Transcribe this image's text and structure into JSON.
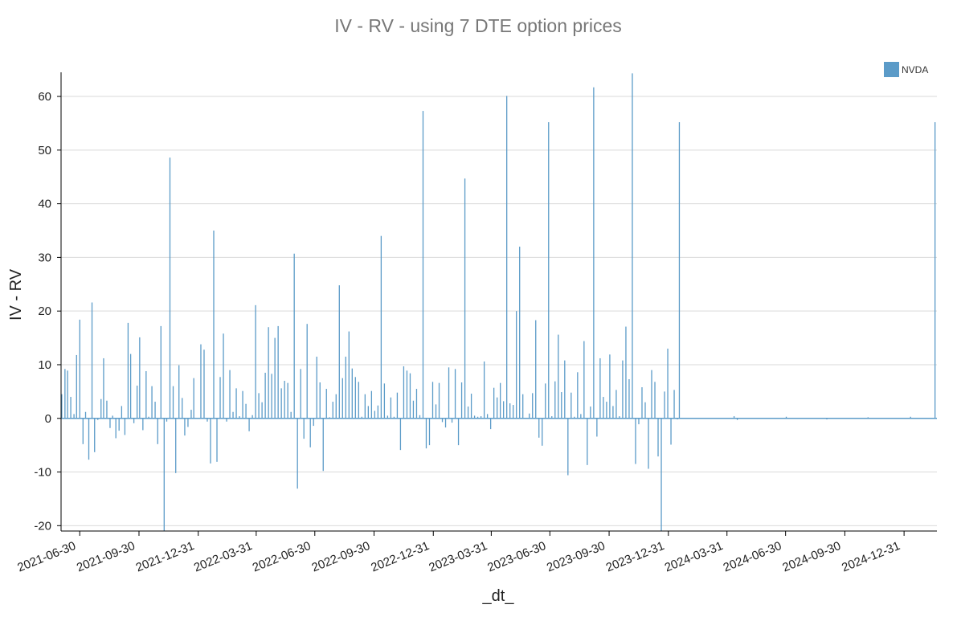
{
  "chart_data": {
    "type": "bar",
    "title": "IV - RV  - using 7 DTE option prices",
    "xlabel": "_dt_",
    "ylabel": "IV - RV",
    "x_tick_labels": [
      "2021-06-30",
      "2021-09-30",
      "2021-12-31",
      "2022-03-31",
      "2022-06-30",
      "2022-09-30",
      "2022-12-31",
      "2023-03-31",
      "2023-06-30",
      "2023-09-30",
      "2023-12-31",
      "2024-03-31",
      "2024-06-30",
      "2024-09-30",
      "2024-12-31"
    ],
    "y_tick_labels": [
      "-20",
      "-10",
      "0",
      "10",
      "20",
      "30",
      "40",
      "50",
      "60"
    ],
    "ylim": [
      -21,
      64.5
    ],
    "xlim": [
      "2021-06-01",
      "2025-02-20"
    ],
    "grid": true,
    "legend_position": "top-right",
    "series": [
      {
        "name": "NVDA",
        "color": "#5b9bc8",
        "points": [
          [
            "2021-06-02",
            4.5
          ],
          [
            "2021-06-07",
            9.2
          ],
          [
            "2021-06-11",
            8.9
          ],
          [
            "2021-06-16",
            4.0
          ],
          [
            "2021-06-21",
            0.8
          ],
          [
            "2021-06-25",
            11.8
          ],
          [
            "2021-06-30",
            18.4
          ],
          [
            "2021-07-05",
            -4.8
          ],
          [
            "2021-07-09",
            1.2
          ],
          [
            "2021-07-14",
            -7.7
          ],
          [
            "2021-07-19",
            21.6
          ],
          [
            "2021-07-23",
            -6.3
          ],
          [
            "2021-07-28",
            -0.3
          ],
          [
            "2021-08-02",
            3.6
          ],
          [
            "2021-08-06",
            11.2
          ],
          [
            "2021-08-11",
            3.3
          ],
          [
            "2021-08-16",
            -1.8
          ],
          [
            "2021-08-20",
            0.5
          ],
          [
            "2021-08-25",
            -3.7
          ],
          [
            "2021-08-30",
            -2.3
          ],
          [
            "2021-09-03",
            2.3
          ],
          [
            "2021-09-08",
            -3.1
          ],
          [
            "2021-09-13",
            17.8
          ],
          [
            "2021-09-17",
            12.0
          ],
          [
            "2021-09-22",
            -0.9
          ],
          [
            "2021-09-27",
            6.1
          ],
          [
            "2021-10-01",
            15.1
          ],
          [
            "2021-10-06",
            -2.2
          ],
          [
            "2021-10-11",
            8.8
          ],
          [
            "2021-10-15",
            0.3
          ],
          [
            "2021-10-20",
            6.0
          ],
          [
            "2021-10-25",
            3.1
          ],
          [
            "2021-10-29",
            -4.8
          ],
          [
            "2021-11-03",
            17.2
          ],
          [
            "2021-11-08",
            -21.0
          ],
          [
            "2021-11-12",
            -0.6
          ],
          [
            "2021-11-17",
            48.6
          ],
          [
            "2021-11-22",
            6.0
          ],
          [
            "2021-11-26",
            -10.2
          ],
          [
            "2021-12-01",
            9.9
          ],
          [
            "2021-12-06",
            3.8
          ],
          [
            "2021-12-10",
            -3.2
          ],
          [
            "2021-12-15",
            -1.6
          ],
          [
            "2021-12-20",
            1.6
          ],
          [
            "2021-12-24",
            7.5
          ],
          [
            "2022-01-04",
            13.8
          ],
          [
            "2022-01-09",
            12.8
          ],
          [
            "2022-01-14",
            -0.6
          ],
          [
            "2022-01-19",
            -8.4
          ],
          [
            "2022-01-24",
            35.0
          ],
          [
            "2022-01-29",
            -8.1
          ],
          [
            "2022-02-03",
            7.7
          ],
          [
            "2022-02-08",
            15.8
          ],
          [
            "2022-02-13",
            -0.6
          ],
          [
            "2022-02-18",
            9.0
          ],
          [
            "2022-02-23",
            1.2
          ],
          [
            "2022-02-28",
            5.6
          ],
          [
            "2022-03-05",
            0.4
          ],
          [
            "2022-03-10",
            5.1
          ],
          [
            "2022-03-15",
            2.7
          ],
          [
            "2022-03-20",
            -2.4
          ],
          [
            "2022-03-25",
            0.6
          ],
          [
            "2022-03-30",
            21.1
          ],
          [
            "2022-04-04",
            4.7
          ],
          [
            "2022-04-09",
            3.0
          ],
          [
            "2022-04-14",
            8.5
          ],
          [
            "2022-04-19",
            17.0
          ],
          [
            "2022-04-24",
            8.3
          ],
          [
            "2022-04-29",
            15.0
          ],
          [
            "2022-05-04",
            17.2
          ],
          [
            "2022-05-09",
            5.6
          ],
          [
            "2022-05-14",
            7.0
          ],
          [
            "2022-05-19",
            6.6
          ],
          [
            "2022-05-24",
            1.2
          ],
          [
            "2022-05-29",
            30.7
          ],
          [
            "2022-06-03",
            -13.1
          ],
          [
            "2022-06-08",
            9.2
          ],
          [
            "2022-06-13",
            -3.8
          ],
          [
            "2022-06-18",
            17.6
          ],
          [
            "2022-06-23",
            -5.4
          ],
          [
            "2022-06-28",
            -1.4
          ],
          [
            "2022-07-03",
            11.5
          ],
          [
            "2022-07-08",
            6.7
          ],
          [
            "2022-07-13",
            -9.8
          ],
          [
            "2022-07-18",
            5.5
          ],
          [
            "2022-07-23",
            0.2
          ],
          [
            "2022-07-28",
            3.1
          ],
          [
            "2022-08-02",
            4.5
          ],
          [
            "2022-08-07",
            24.8
          ],
          [
            "2022-08-12",
            7.5
          ],
          [
            "2022-08-17",
            11.5
          ],
          [
            "2022-08-22",
            16.2
          ],
          [
            "2022-08-27",
            9.3
          ],
          [
            "2022-09-01",
            7.7
          ],
          [
            "2022-09-06",
            6.8
          ],
          [
            "2022-09-11",
            0.3
          ],
          [
            "2022-09-16",
            4.5
          ],
          [
            "2022-09-21",
            2.3
          ],
          [
            "2022-09-26",
            5.1
          ],
          [
            "2022-10-01",
            1.4
          ],
          [
            "2022-10-06",
            2.4
          ],
          [
            "2022-10-11",
            34.0
          ],
          [
            "2022-10-16",
            6.5
          ],
          [
            "2022-10-21",
            0.5
          ],
          [
            "2022-10-26",
            3.9
          ],
          [
            "2022-10-31",
            0.3
          ],
          [
            "2022-11-05",
            4.8
          ],
          [
            "2022-11-10",
            -5.9
          ],
          [
            "2022-11-15",
            9.7
          ],
          [
            "2022-11-20",
            8.9
          ],
          [
            "2022-11-25",
            8.4
          ],
          [
            "2022-11-30",
            3.3
          ],
          [
            "2022-12-05",
            5.5
          ],
          [
            "2022-12-10",
            0.6
          ],
          [
            "2022-12-15",
            57.3
          ],
          [
            "2022-12-20",
            -5.6
          ],
          [
            "2022-12-25",
            -5.0
          ],
          [
            "2022-12-30",
            6.8
          ],
          [
            "2023-01-04",
            2.6
          ],
          [
            "2023-01-09",
            6.6
          ],
          [
            "2023-01-14",
            -0.7
          ],
          [
            "2023-01-19",
            -1.7
          ],
          [
            "2023-01-24",
            9.5
          ],
          [
            "2023-01-29",
            -0.8
          ],
          [
            "2023-02-03",
            9.2
          ],
          [
            "2023-02-08",
            -5.0
          ],
          [
            "2023-02-13",
            6.7
          ],
          [
            "2023-02-18",
            44.7
          ],
          [
            "2023-02-23",
            2.2
          ],
          [
            "2023-02-28",
            4.6
          ],
          [
            "2023-03-05",
            0.5
          ],
          [
            "2023-03-10",
            0.3
          ],
          [
            "2023-03-15",
            0.4
          ],
          [
            "2023-03-20",
            10.6
          ],
          [
            "2023-03-25",
            0.8
          ],
          [
            "2023-03-30",
            -2.0
          ],
          [
            "2023-04-04",
            5.7
          ],
          [
            "2023-04-09",
            3.9
          ],
          [
            "2023-04-14",
            6.6
          ],
          [
            "2023-04-19",
            3.2
          ],
          [
            "2023-04-24",
            60.1
          ],
          [
            "2023-04-29",
            2.8
          ],
          [
            "2023-05-04",
            2.5
          ],
          [
            "2023-05-09",
            20.0
          ],
          [
            "2023-05-14",
            32.0
          ],
          [
            "2023-05-19",
            4.5
          ],
          [
            "2023-05-24",
            0.1
          ],
          [
            "2023-05-29",
            0.9
          ],
          [
            "2023-06-03",
            4.7
          ],
          [
            "2023-06-08",
            18.3
          ],
          [
            "2023-06-13",
            -3.6
          ],
          [
            "2023-06-18",
            -5.1
          ],
          [
            "2023-06-23",
            6.5
          ],
          [
            "2023-06-28",
            55.2
          ],
          [
            "2023-07-03",
            0.4
          ],
          [
            "2023-07-08",
            6.9
          ],
          [
            "2023-07-13",
            15.6
          ],
          [
            "2023-07-18",
            4.9
          ],
          [
            "2023-07-23",
            10.8
          ],
          [
            "2023-07-28",
            -10.6
          ],
          [
            "2023-08-02",
            4.8
          ],
          [
            "2023-08-07",
            0.3
          ],
          [
            "2023-08-12",
            8.6
          ],
          [
            "2023-08-17",
            0.8
          ],
          [
            "2023-08-22",
            14.4
          ],
          [
            "2023-08-27",
            -8.7
          ],
          [
            "2023-09-01",
            2.2
          ],
          [
            "2023-09-06",
            61.7
          ],
          [
            "2023-09-11",
            -3.4
          ],
          [
            "2023-09-16",
            11.2
          ],
          [
            "2023-09-21",
            4.0
          ],
          [
            "2023-09-26",
            3.1
          ],
          [
            "2023-10-01",
            11.9
          ],
          [
            "2023-10-06",
            2.3
          ],
          [
            "2023-10-11",
            5.3
          ],
          [
            "2023-10-16",
            0.4
          ],
          [
            "2023-10-21",
            10.8
          ],
          [
            "2023-10-26",
            17.1
          ],
          [
            "2023-10-31",
            7.3
          ],
          [
            "2023-11-05",
            64.3
          ],
          [
            "2023-11-10",
            -8.5
          ],
          [
            "2023-11-15",
            -1.1
          ],
          [
            "2023-11-20",
            5.8
          ],
          [
            "2023-11-25",
            3.0
          ],
          [
            "2023-11-30",
            -9.4
          ],
          [
            "2023-12-05",
            9.0
          ],
          [
            "2023-12-10",
            6.8
          ],
          [
            "2023-12-15",
            -7.1
          ],
          [
            "2023-12-20",
            -21.0
          ],
          [
            "2023-12-25",
            5.0
          ],
          [
            "2023-12-30",
            13.0
          ],
          [
            "2024-01-04",
            -4.9
          ],
          [
            "2024-01-09",
            5.3
          ],
          [
            "2024-01-14",
            -0.2
          ],
          [
            "2024-01-17",
            55.2
          ],
          [
            "2024-04-11",
            0.4
          ],
          [
            "2024-04-16",
            -0.3
          ],
          [
            "2024-07-01",
            0.3
          ],
          [
            "2024-09-02",
            -0.2
          ],
          [
            "2024-11-05",
            0.2
          ],
          [
            "2025-01-10",
            0.3
          ],
          [
            "2025-02-17",
            55.2
          ]
        ]
      }
    ]
  }
}
